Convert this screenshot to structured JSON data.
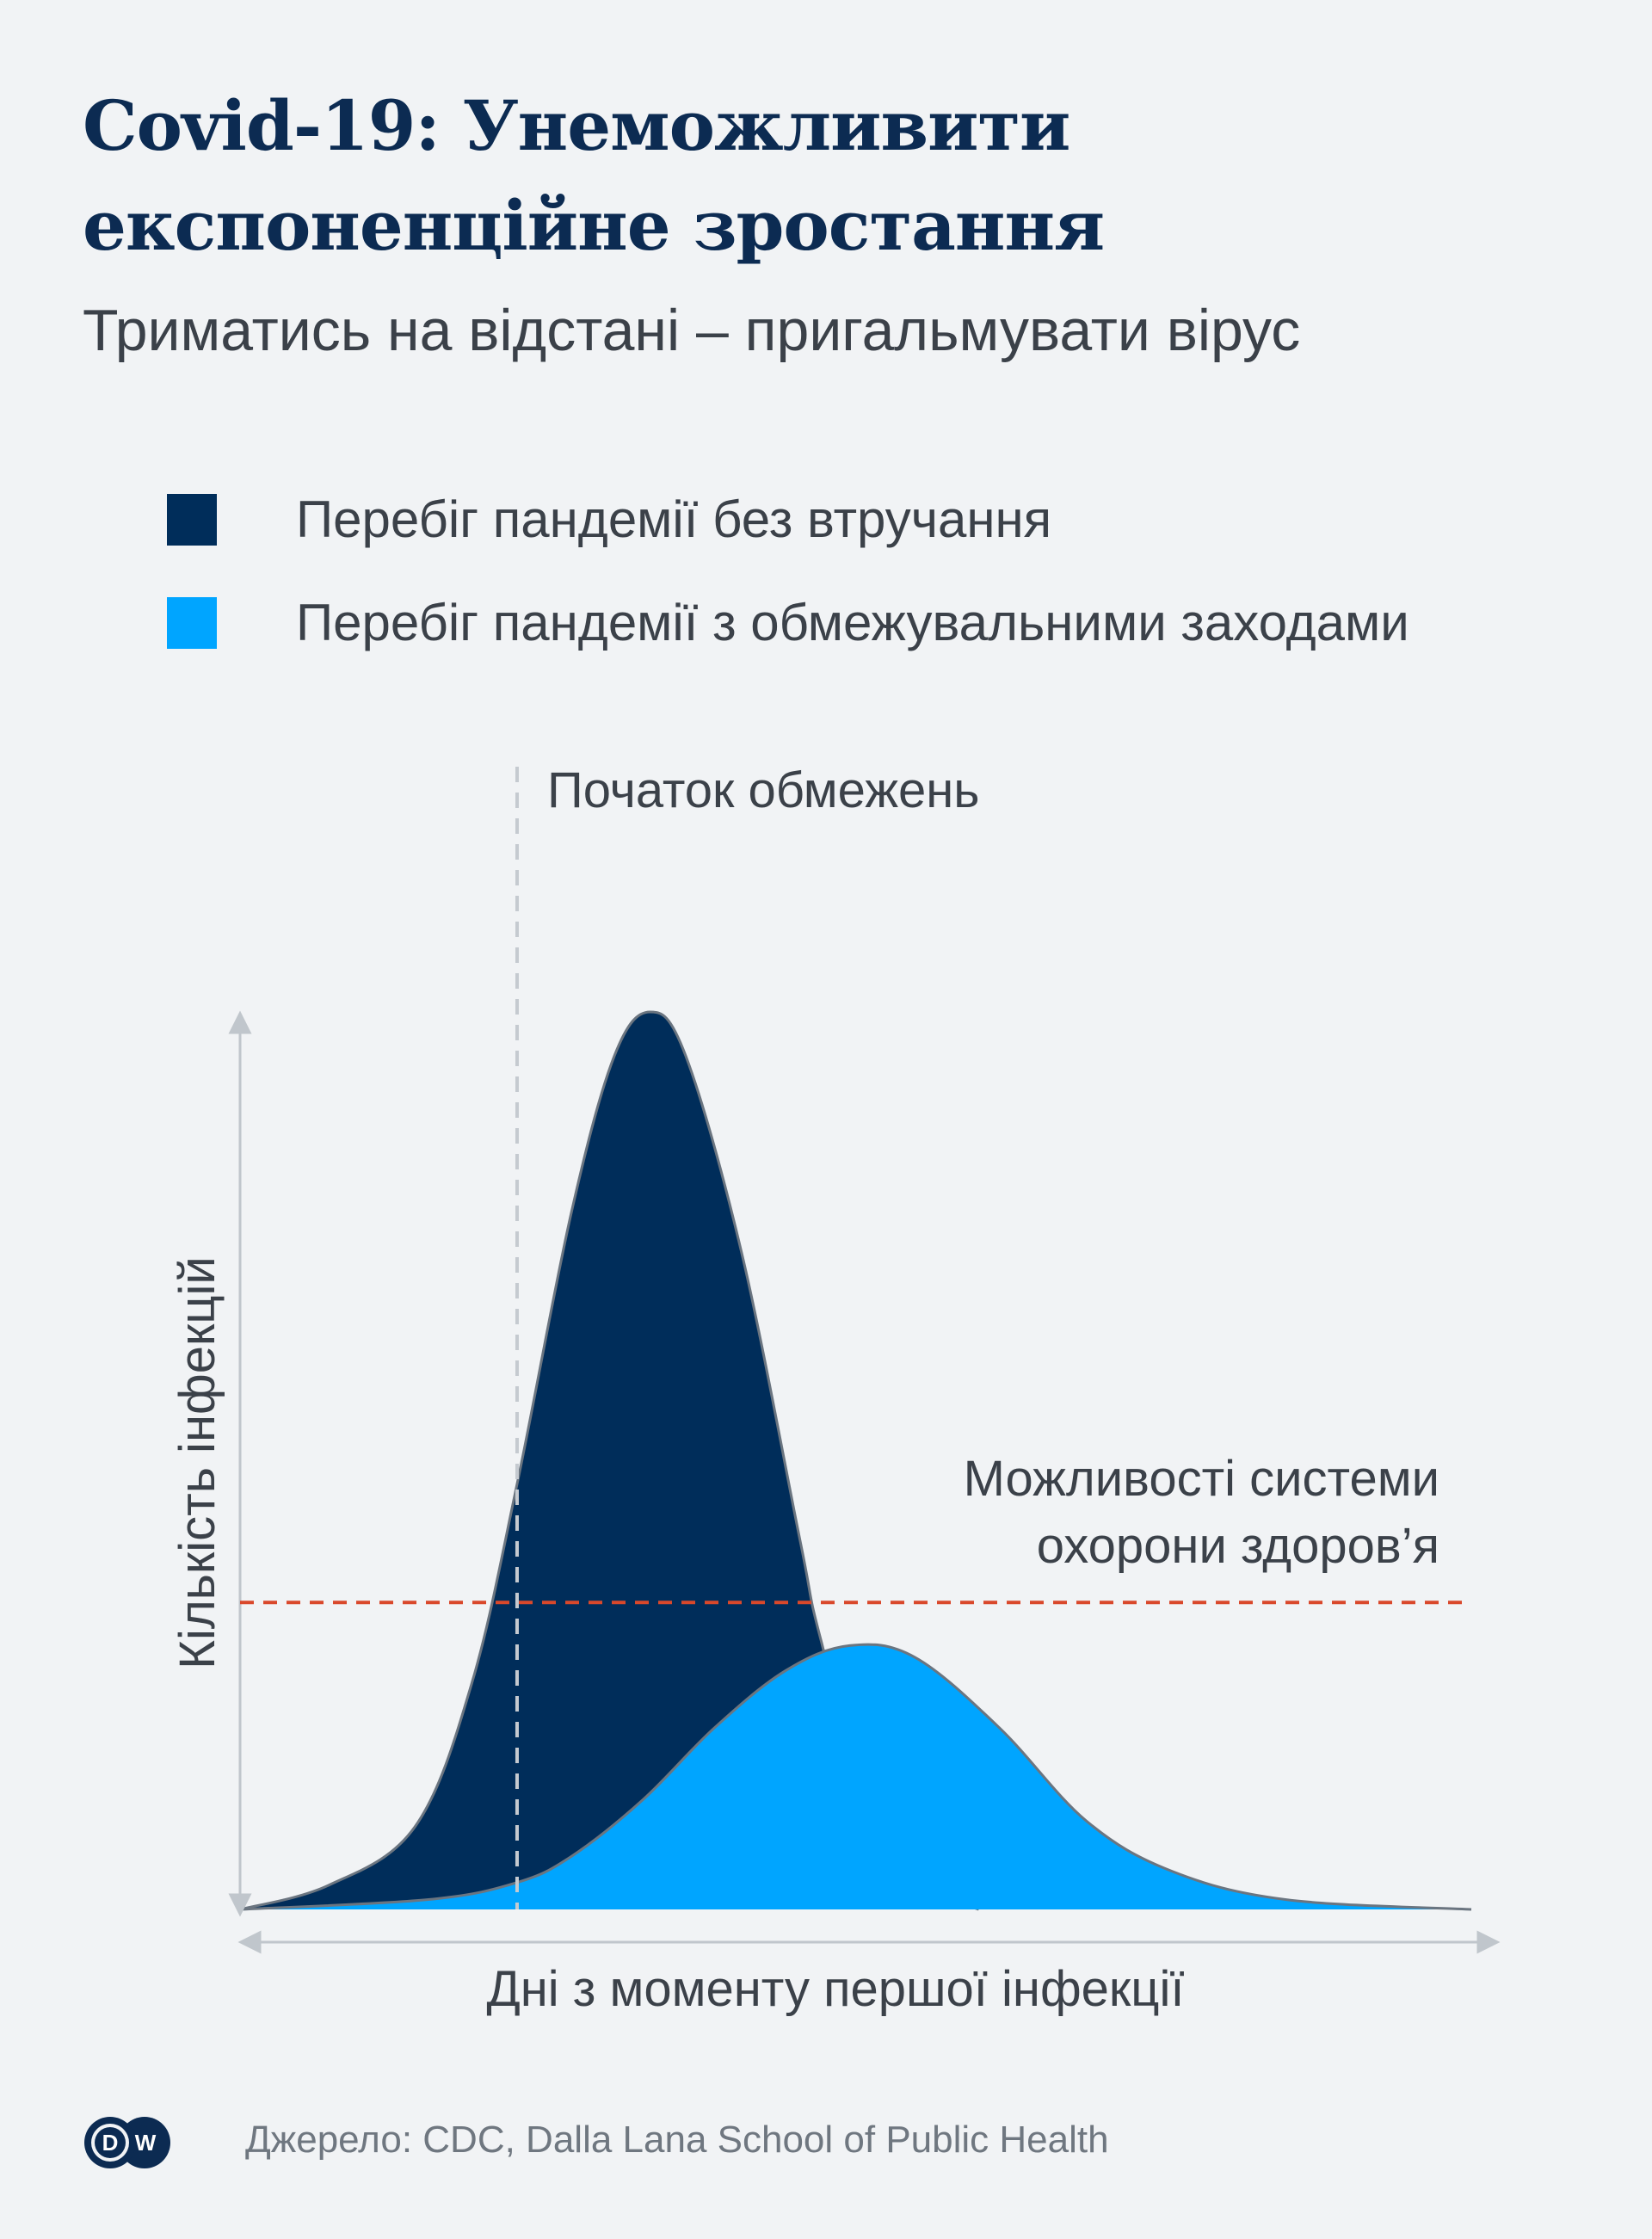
{
  "header": {
    "title_line1": "Covid-19: Унеможливити",
    "title_line2": "експоненційне зростання",
    "subtitle": "Триматись на відстані – пригальмувати вірус"
  },
  "legend": [
    {
      "label": "Перебіг пандемії без втручання",
      "color": "#002d5a"
    },
    {
      "label": "Перебіг пандемії з обмежувальними заходами",
      "color": "#00a5ff"
    }
  ],
  "chart_data": {
    "type": "area",
    "xlabel": "Дні з моменту першої інфекції",
    "ylabel": "Кількість інфекцій",
    "xlim": [
      0,
      100
    ],
    "ylim": [
      0,
      100
    ],
    "ticks": "none",
    "grid": false,
    "legend_position": "top-left",
    "series": [
      {
        "name": "Перебіг пандемії без втручання",
        "color": "#002d5a",
        "points": [
          [
            0,
            0
          ],
          [
            7.2,
            2.7
          ],
          [
            14.2,
            9.2
          ],
          [
            18.8,
            25.1
          ],
          [
            22.5,
            47.4
          ],
          [
            26.9,
            77.6
          ],
          [
            30.4,
            95.1
          ],
          [
            33.3,
            100
          ],
          [
            36.2,
            95.1
          ],
          [
            40.8,
            72.8
          ],
          [
            45.5,
            41.0
          ],
          [
            47.2,
            29.9
          ],
          [
            52.4,
            5
          ],
          [
            60,
            0
          ]
        ]
      },
      {
        "name": "Перебіг пандемії з обмежувальними заходами",
        "color": "#00a5ff",
        "points": [
          [
            0,
            0
          ],
          [
            15.3,
            1.1
          ],
          [
            22.5,
            3.0
          ],
          [
            26.9,
            5.9
          ],
          [
            32.7,
            12.2
          ],
          [
            38.5,
            20.2
          ],
          [
            44.3,
            26.6
          ],
          [
            49.5,
            29.4
          ],
          [
            54.8,
            28.1
          ],
          [
            61.7,
            20.2
          ],
          [
            68.7,
            9.9
          ],
          [
            75.6,
            4.3
          ],
          [
            84.9,
            1.1
          ],
          [
            100,
            0
          ]
        ]
      }
    ],
    "annotations": {
      "restrictions_start": {
        "label": "Початок обмежень",
        "x": 22.5,
        "color": "#c5cad0"
      },
      "capacity": {
        "label_line1": "Можливості системи",
        "label_line2": "охорони здоров’я",
        "y": 34.2,
        "color": "#d9482b"
      }
    }
  },
  "footer": {
    "source": "Джерело: CDC, Dalla Lana School of Public Health",
    "logo_text": "DW"
  }
}
